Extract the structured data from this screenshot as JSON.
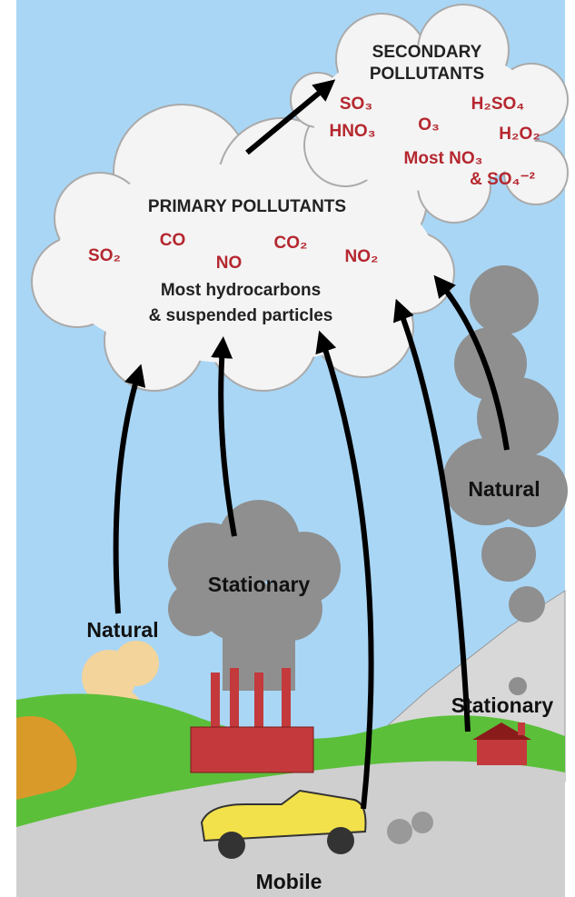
{
  "secondary": {
    "title": [
      "SECONDARY",
      "POLLUTANTS"
    ],
    "pollutants": [
      "SO₃",
      "H₂SO₄",
      "HNO₃",
      "O₃",
      "H₂O₂",
      "Most NO₃",
      "& SO₄⁻²"
    ]
  },
  "primary": {
    "title": "PRIMARY POLLUTANTS",
    "pollutants": [
      "SO₂",
      "CO",
      "NO",
      "CO₂",
      "NO₂"
    ],
    "others": [
      "Most hydrocarbons",
      "& suspended particles"
    ]
  },
  "sources": [
    "Natural",
    "Stationary",
    "Natural",
    "Stationary",
    "Mobile"
  ]
}
